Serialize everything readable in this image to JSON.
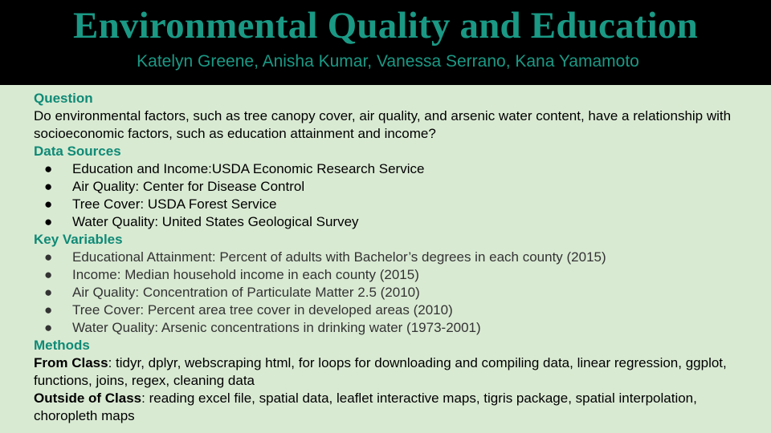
{
  "header": {
    "title": "Environmental Quality and Education",
    "authors": "Katelyn Greene, Anisha Kumar, Vanessa Serrano, Kana Yamamoto"
  },
  "question": {
    "heading": "Question",
    "text": "Do environmental factors, such as tree canopy cover, air quality, and arsenic water content, have a relationship with socioeconomic factors, such as education attainment and income?"
  },
  "data_sources": {
    "heading": "Data Sources",
    "items": [
      "Education and Income:USDA Economic Research Service",
      "Air Quality: Center for Disease Control",
      "Tree Cover: USDA Forest Service",
      "Water Quality: United States Geological Survey"
    ]
  },
  "key_variables": {
    "heading": "Key Variables",
    "items": [
      "Educational Attainment: Percent of adults with Bachelor’s degrees in each county (2015)",
      "Income: Median household income in each county (2015)",
      "Air Quality: Concentration of Particulate Matter 2.5 (2010)",
      "Tree Cover: Percent area tree cover in developed areas (2010)",
      "Water Quality: Arsenic concentrations in drinking water (1973-2001)"
    ]
  },
  "methods": {
    "heading": "Methods",
    "from_class_label": "From Class",
    "from_class_text": ": tidyr, dplyr, webscraping html, for loops for downloading and compiling data, linear regression, ggplot, functions, joins, regex, cleaning data",
    "outside_label": "Outside of Class",
    "outside_text": ": reading excel file, spatial data, leaflet interactive maps, tigris package, spatial interpolation, choropleth maps"
  },
  "bullet_glyph": "●",
  "colors": {
    "background": "#d9ead3",
    "header_bg": "#000000",
    "accent": "#1a9985",
    "heading": "#0f8a76"
  }
}
